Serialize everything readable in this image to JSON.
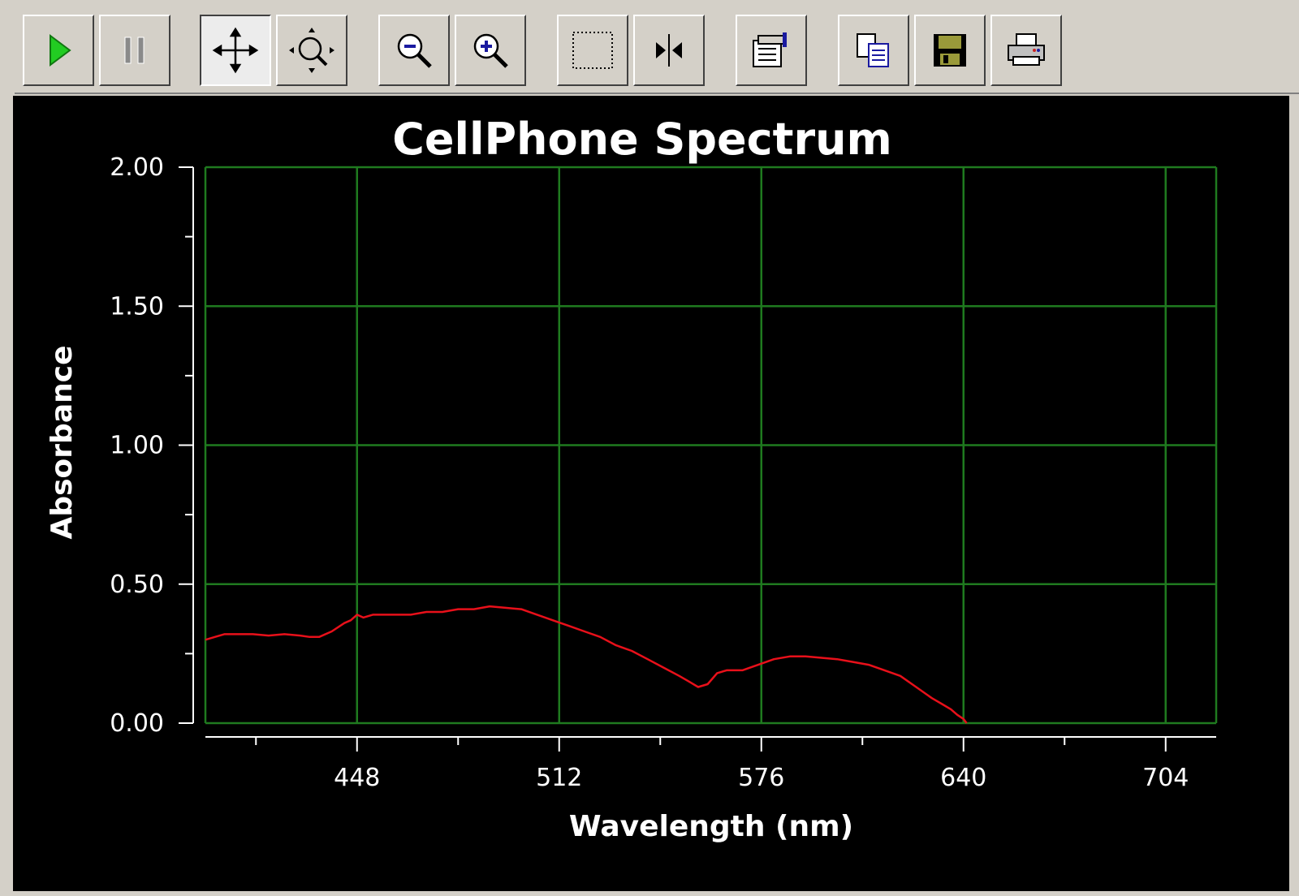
{
  "toolbar": {
    "buttons": [
      {
        "name": "play-button",
        "icon": "play-icon"
      },
      {
        "name": "pause-button",
        "icon": "pause-icon"
      },
      {
        "name": "pan-button",
        "icon": "move-arrows-icon",
        "pressed": true
      },
      {
        "name": "zoom-area-button",
        "icon": "zoom-area-icon"
      },
      {
        "name": "zoom-out-button",
        "icon": "zoom-out-icon"
      },
      {
        "name": "zoom-in-button",
        "icon": "zoom-in-icon"
      },
      {
        "name": "select-region-button",
        "icon": "selection-rectangle-icon"
      },
      {
        "name": "cursor-button",
        "icon": "cursor-marker-icon"
      },
      {
        "name": "properties-button",
        "icon": "properties-icon"
      },
      {
        "name": "copy-button",
        "icon": "copy-icon"
      },
      {
        "name": "save-button",
        "icon": "floppy-disk-icon"
      },
      {
        "name": "print-button",
        "icon": "printer-icon"
      }
    ]
  },
  "colors": {
    "background": "#000000",
    "grid": "#1f7a1f",
    "axes": "#ffffff",
    "trace": "#e8101a",
    "play_green": "#22cc22"
  },
  "chart_data": {
    "type": "line",
    "title": "CellPhone Spectrum",
    "xlabel": "Wavelength (nm)",
    "ylabel": "Absorbance",
    "xlim": [
      400,
      720
    ],
    "ylim": [
      0,
      2
    ],
    "x_ticks": [
      448,
      512,
      576,
      640,
      704
    ],
    "y_ticks": [
      "0.00",
      "0.50",
      "1.00",
      "1.50",
      "2.00"
    ],
    "y_tick_values": [
      0,
      0.5,
      1.0,
      1.5,
      2.0
    ],
    "grid": true,
    "series": [
      {
        "x": [
          400,
          403,
          406,
          410,
          415,
          420,
          425,
          430,
          433,
          436,
          440,
          444,
          446,
          448,
          450,
          453,
          456,
          460,
          465,
          470,
          475,
          480,
          485,
          490,
          495,
          500,
          505,
          510,
          515,
          520,
          525,
          530,
          535,
          540,
          545,
          550,
          553,
          556,
          559,
          562,
          565,
          570,
          575,
          580,
          585,
          590,
          595,
          600,
          605,
          610,
          615,
          620,
          625,
          630,
          633,
          636,
          638,
          640,
          641
        ],
        "y": [
          0.3,
          0.31,
          0.32,
          0.32,
          0.32,
          0.315,
          0.32,
          0.315,
          0.31,
          0.31,
          0.33,
          0.36,
          0.37,
          0.39,
          0.38,
          0.39,
          0.39,
          0.39,
          0.39,
          0.4,
          0.4,
          0.41,
          0.41,
          0.42,
          0.415,
          0.41,
          0.39,
          0.37,
          0.35,
          0.33,
          0.31,
          0.28,
          0.26,
          0.23,
          0.2,
          0.17,
          0.15,
          0.13,
          0.14,
          0.18,
          0.19,
          0.19,
          0.21,
          0.23,
          0.24,
          0.24,
          0.235,
          0.23,
          0.22,
          0.21,
          0.19,
          0.17,
          0.13,
          0.09,
          0.07,
          0.05,
          0.03,
          0.015,
          0.0
        ]
      }
    ]
  }
}
